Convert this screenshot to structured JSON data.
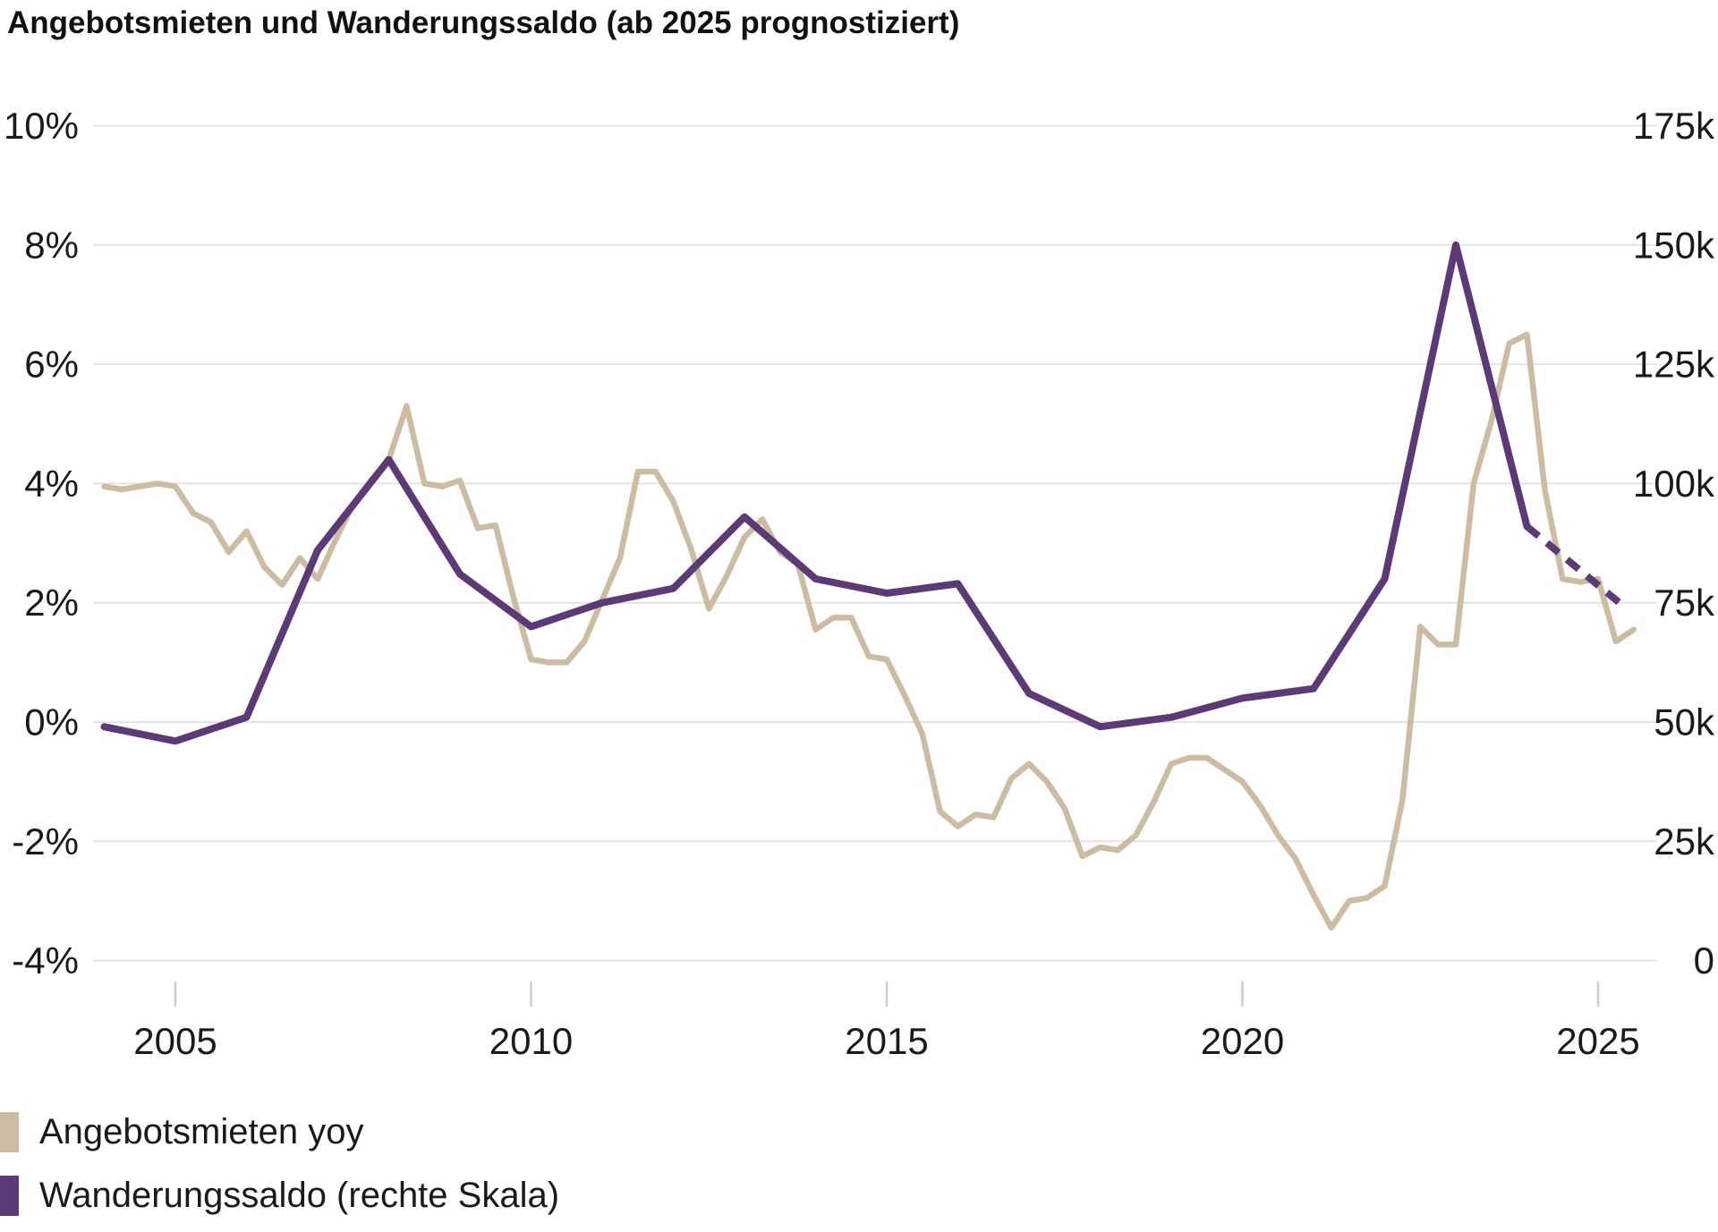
{
  "title": "Angebotsmieten und Wanderungssaldo (ab 2025 prognostiziert)",
  "colors": {
    "rents": "#cbbca3",
    "migration": "#5b3a76",
    "grid": "#e4e4e4",
    "tick": "#cccccc",
    "text": "#1a1a1a"
  },
  "legend": [
    {
      "label": "Angebotsmieten yoy",
      "series": "rents"
    },
    {
      "label": "Wanderungssaldo (rechte Skala)",
      "series": "migration"
    }
  ],
  "chart_data": {
    "type": "line",
    "title": "Angebotsmieten und Wanderungssaldo (ab 2025 prognostiziert)",
    "grid": "horizontal",
    "legend_position": "bottom-left",
    "xlim": [
      2004,
      2026
    ],
    "left_axis": {
      "unit": "%",
      "ylim": [
        -4,
        10
      ],
      "tick_values": [
        10,
        8,
        6,
        4,
        2,
        0,
        -2,
        -4
      ],
      "tick_labels": [
        "10%",
        "8%",
        "6%",
        "4%",
        "2%",
        "0%",
        "-2%",
        "-4%"
      ]
    },
    "right_axis": {
      "unit": "persons",
      "ylim_k": [
        0,
        175
      ],
      "tick_values_k": [
        175,
        150,
        125,
        100,
        75,
        50,
        25,
        0
      ],
      "tick_labels": [
        "175k",
        "150k",
        "125k",
        "100k",
        "75k",
        "50k",
        "25k",
        "0"
      ]
    },
    "x_axis": {
      "tick_years": [
        2005,
        2010,
        2015,
        2020,
        2025
      ],
      "tick_labels": [
        "2005",
        "2010",
        "2015",
        "2020",
        "2025"
      ]
    },
    "series": [
      {
        "name": "Angebotsmieten yoy",
        "axis": "left",
        "unit": "%",
        "style": "solid",
        "x_start": 2004.0,
        "x_step": 0.25,
        "values": [
          3.95,
          3.9,
          3.95,
          4.0,
          3.95,
          3.5,
          3.35,
          2.85,
          3.2,
          2.6,
          2.3,
          2.75,
          2.4,
          3.05,
          3.65,
          4.05,
          4.4,
          5.3,
          4.0,
          3.95,
          4.05,
          3.25,
          3.3,
          2.1,
          1.05,
          1.0,
          1.0,
          1.35,
          2.05,
          2.75,
          4.2,
          4.2,
          3.7,
          2.9,
          1.9,
          2.45,
          3.1,
          3.4,
          2.85,
          2.65,
          1.55,
          1.75,
          1.75,
          1.1,
          1.05,
          0.45,
          -0.2,
          -1.5,
          -1.75,
          -1.55,
          -1.6,
          -0.95,
          -0.7,
          -1.0,
          -1.45,
          -2.25,
          -2.1,
          -2.15,
          -1.9,
          -1.35,
          -0.7,
          -0.6,
          -0.6,
          -0.8,
          -1.0,
          -1.4,
          -1.9,
          -2.3,
          -2.9,
          -3.45,
          -3.0,
          -2.95,
          -2.75,
          -1.3,
          1.6,
          1.3,
          1.3,
          4.0,
          5.05,
          6.35,
          6.5,
          3.9,
          2.4,
          2.35,
          2.4,
          1.35,
          1.55
        ]
      },
      {
        "name": "Wanderungssaldo (rechte Skala)",
        "axis": "right",
        "unit": "thousand persons",
        "style": "solid",
        "years": [
          2004,
          2005,
          2006,
          2007,
          2008,
          2009,
          2010,
          2011,
          2012,
          2013,
          2014,
          2015,
          2016,
          2017,
          2018,
          2019,
          2020,
          2021,
          2022,
          2023,
          2024
        ],
        "values_k": [
          49,
          46,
          51,
          86,
          105,
          81,
          70,
          75,
          78,
          93,
          80,
          77,
          79,
          56,
          49,
          51,
          55,
          57,
          80,
          150,
          91
        ],
        "forecast": {
          "note": "ab 2025 prognostiziert",
          "style": "dashed",
          "x": [
            2024,
            2025.3
          ],
          "values_k": [
            91,
            75
          ]
        }
      }
    ]
  }
}
